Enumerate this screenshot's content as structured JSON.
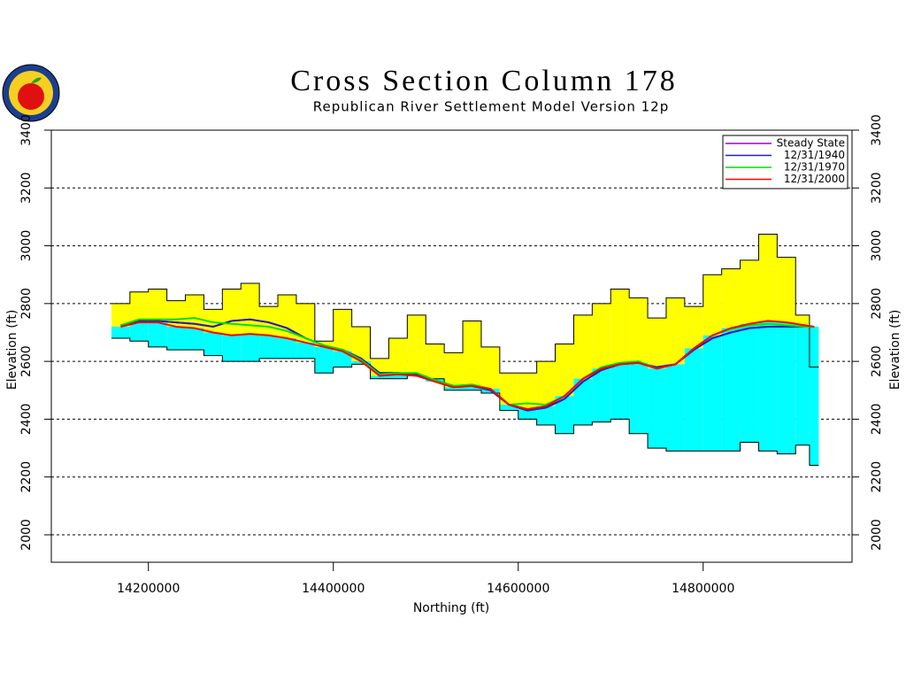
{
  "chart_data": {
    "type": "cross-section",
    "title": "Cross Section Column 178",
    "subtitle": "Republican River Settlement Model Version 12p",
    "x_label": "Northing (ft)",
    "y_label": "Elevation (ft)",
    "xlim": [
      14095000,
      14961000
    ],
    "ylim": [
      1905,
      3400
    ],
    "xticks": [
      14200000,
      14400000,
      14600000,
      14800000
    ],
    "yticks": [
      2000,
      2200,
      2400,
      2600,
      2800,
      3000,
      3200,
      3400
    ],
    "grid": true,
    "legend": "upper right",
    "x": [
      14170000,
      14190000,
      14210000,
      14230000,
      14250000,
      14270000,
      14290000,
      14310000,
      14330000,
      14350000,
      14370000,
      14390000,
      14410000,
      14430000,
      14450000,
      14470000,
      14490000,
      14510000,
      14530000,
      14550000,
      14570000,
      14590000,
      14610000,
      14630000,
      14650000,
      14670000,
      14690000,
      14710000,
      14730000,
      14750000,
      14770000,
      14790000,
      14810000,
      14830000,
      14850000,
      14870000,
      14890000,
      14910000,
      14920000
    ],
    "land_surface": [
      2800,
      2840,
      2850,
      2810,
      2830,
      2780,
      2850,
      2870,
      2790,
      2830,
      2800,
      2670,
      2780,
      2720,
      2610,
      2680,
      2760,
      2660,
      2630,
      2740,
      2650,
      2560,
      2560,
      2600,
      2660,
      2760,
      2800,
      2850,
      2820,
      2750,
      2820,
      2790,
      2900,
      2920,
      2950,
      3040,
      2960,
      2760,
      2580
    ],
    "land_color": "#ffff00",
    "bedrock": [
      2680,
      2670,
      2650,
      2640,
      2640,
      2620,
      2600,
      2600,
      2610,
      2610,
      2610,
      2560,
      2580,
      2590,
      2540,
      2540,
      2550,
      2540,
      2500,
      2500,
      2490,
      2430,
      2400,
      2380,
      2350,
      2380,
      2390,
      2400,
      2350,
      2300,
      2290,
      2290,
      2290,
      2290,
      2320,
      2290,
      2280,
      2310,
      2240
    ],
    "saturated_color": "#00ffff",
    "series": [
      {
        "name": "Steady State",
        "color": "#a000c0",
        "values": [
          2725,
          2740,
          2740,
          2735,
          2730,
          2720,
          2740,
          2745,
          2735,
          2715,
          2680,
          2655,
          2640,
          2610,
          2560,
          2560,
          2555,
          2535,
          2515,
          2515,
          2500,
          2450,
          2430,
          2440,
          2470,
          2530,
          2570,
          2590,
          2595,
          2580,
          2590,
          2640,
          2680,
          2700,
          2715,
          2720,
          2720,
          2720,
          2720
        ]
      },
      {
        "name": "12/31/1940",
        "color": "#2020c0",
        "values": [
          2725,
          2740,
          2740,
          2735,
          2730,
          2720,
          2740,
          2745,
          2735,
          2715,
          2680,
          2655,
          2640,
          2610,
          2560,
          2560,
          2555,
          2535,
          2515,
          2515,
          2500,
          2450,
          2430,
          2440,
          2470,
          2530,
          2570,
          2590,
          2595,
          2580,
          2590,
          2640,
          2680,
          2700,
          2715,
          2720,
          2720,
          2720,
          2720
        ]
      },
      {
        "name": "12/31/1970",
        "color": "#00e000",
        "values": [
          2725,
          2745,
          2745,
          2745,
          2750,
          2735,
          2730,
          2725,
          2720,
          2705,
          2680,
          2655,
          2640,
          2605,
          2555,
          2560,
          2560,
          2535,
          2515,
          2520,
          2505,
          2450,
          2455,
          2450,
          2480,
          2540,
          2580,
          2595,
          2600,
          2575,
          2590,
          2645,
          2690,
          2712,
          2725,
          2730,
          2725,
          2720,
          2720
        ]
      },
      {
        "name": "12/31/2000",
        "color": "#ff0000",
        "values": [
          2720,
          2735,
          2735,
          2720,
          2715,
          2700,
          2690,
          2695,
          2690,
          2680,
          2665,
          2650,
          2635,
          2600,
          2550,
          2555,
          2550,
          2530,
          2510,
          2515,
          2505,
          2450,
          2435,
          2445,
          2480,
          2540,
          2575,
          2590,
          2595,
          2575,
          2590,
          2645,
          2690,
          2715,
          2730,
          2740,
          2735,
          2725,
          2720
        ]
      }
    ]
  }
}
